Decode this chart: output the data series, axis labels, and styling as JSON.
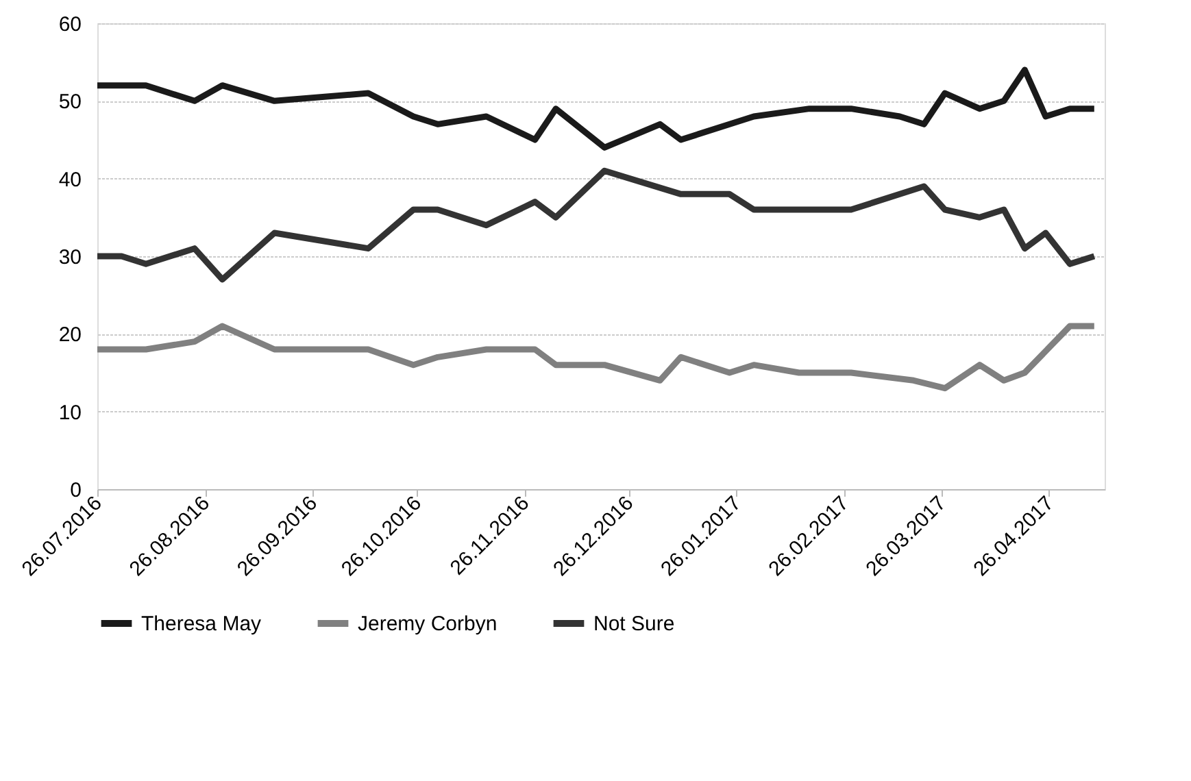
{
  "chart_data": {
    "type": "line",
    "xlim": [
      "2016-07-26",
      "2017-05-12"
    ],
    "xticks": [
      {
        "value": "2016-07-26",
        "label": "26.07.2016"
      },
      {
        "value": "2016-08-26",
        "label": "26.08.2016"
      },
      {
        "value": "2016-09-26",
        "label": "26.09.2016"
      },
      {
        "value": "2016-10-26",
        "label": "26.10.2016"
      },
      {
        "value": "2016-11-26",
        "label": "26.11.2016"
      },
      {
        "value": "2016-12-26",
        "label": "26.12.2016"
      },
      {
        "value": "2017-01-26",
        "label": "26.01.2017"
      },
      {
        "value": "2017-02-26",
        "label": "26.02.2017"
      },
      {
        "value": "2017-03-26",
        "label": "26.03.2017"
      },
      {
        "value": "2017-04-26",
        "label": "26.04.2017"
      }
    ],
    "ylim": [
      0,
      60
    ],
    "yticks": [
      0,
      10,
      20,
      30,
      40,
      50,
      60
    ],
    "grid": "y",
    "legend": "bottom",
    "marker": "none",
    "line_style": "solid",
    "series": [
      {
        "name": "Theresa May",
        "color": "#1a1a1a",
        "x": [
          "2016-07-26",
          "2016-08-09",
          "2016-08-23",
          "2016-08-31",
          "2016-09-15",
          "2016-10-12",
          "2016-10-25",
          "2016-11-01",
          "2016-11-15",
          "2016-11-29",
          "2016-12-05",
          "2016-12-19",
          "2017-01-04",
          "2017-01-10",
          "2017-01-31",
          "2017-02-16",
          "2017-02-28",
          "2017-03-14",
          "2017-03-21",
          "2017-03-27",
          "2017-04-06",
          "2017-04-13",
          "2017-04-19",
          "2017-04-25",
          "2017-05-02",
          "2017-05-09"
        ],
        "values": [
          52,
          52,
          50,
          52,
          50,
          51,
          48,
          47,
          48,
          45,
          49,
          44,
          47,
          45,
          48,
          49,
          49,
          48,
          47,
          51,
          49,
          50,
          54,
          48,
          49,
          49
        ]
      },
      {
        "name": "Jeremy Corbyn",
        "color": "#808080",
        "x": [
          "2016-07-26",
          "2016-08-09",
          "2016-08-23",
          "2016-08-31",
          "2016-09-15",
          "2016-10-12",
          "2016-10-25",
          "2016-11-01",
          "2016-11-15",
          "2016-11-29",
          "2016-12-05",
          "2016-12-19",
          "2017-01-04",
          "2017-01-10",
          "2017-01-24",
          "2017-01-31",
          "2017-02-13",
          "2017-02-28",
          "2017-03-18",
          "2017-03-27",
          "2017-04-06",
          "2017-04-13",
          "2017-04-19",
          "2017-05-02",
          "2017-05-09"
        ],
        "values": [
          18,
          18,
          19,
          21,
          18,
          18,
          16,
          17,
          18,
          18,
          16,
          16,
          14,
          17,
          15,
          16,
          15,
          15,
          14,
          13,
          16,
          14,
          15,
          21,
          21
        ]
      },
      {
        "name": "Not Sure",
        "color": "#333333",
        "x": [
          "2016-07-26",
          "2016-08-02",
          "2016-08-09",
          "2016-08-23",
          "2016-08-31",
          "2016-09-15",
          "2016-10-12",
          "2016-10-25",
          "2016-11-01",
          "2016-11-15",
          "2016-11-29",
          "2016-12-05",
          "2016-12-19",
          "2017-01-10",
          "2017-01-24",
          "2017-01-31",
          "2017-02-28",
          "2017-03-21",
          "2017-03-27",
          "2017-04-06",
          "2017-04-13",
          "2017-04-19",
          "2017-04-25",
          "2017-05-02",
          "2017-05-09"
        ],
        "values": [
          30,
          30,
          29,
          31,
          27,
          33,
          31,
          36,
          36,
          34,
          37,
          35,
          41,
          38,
          38,
          36,
          36,
          39,
          36,
          35,
          36,
          31,
          33,
          29,
          30
        ]
      }
    ]
  }
}
